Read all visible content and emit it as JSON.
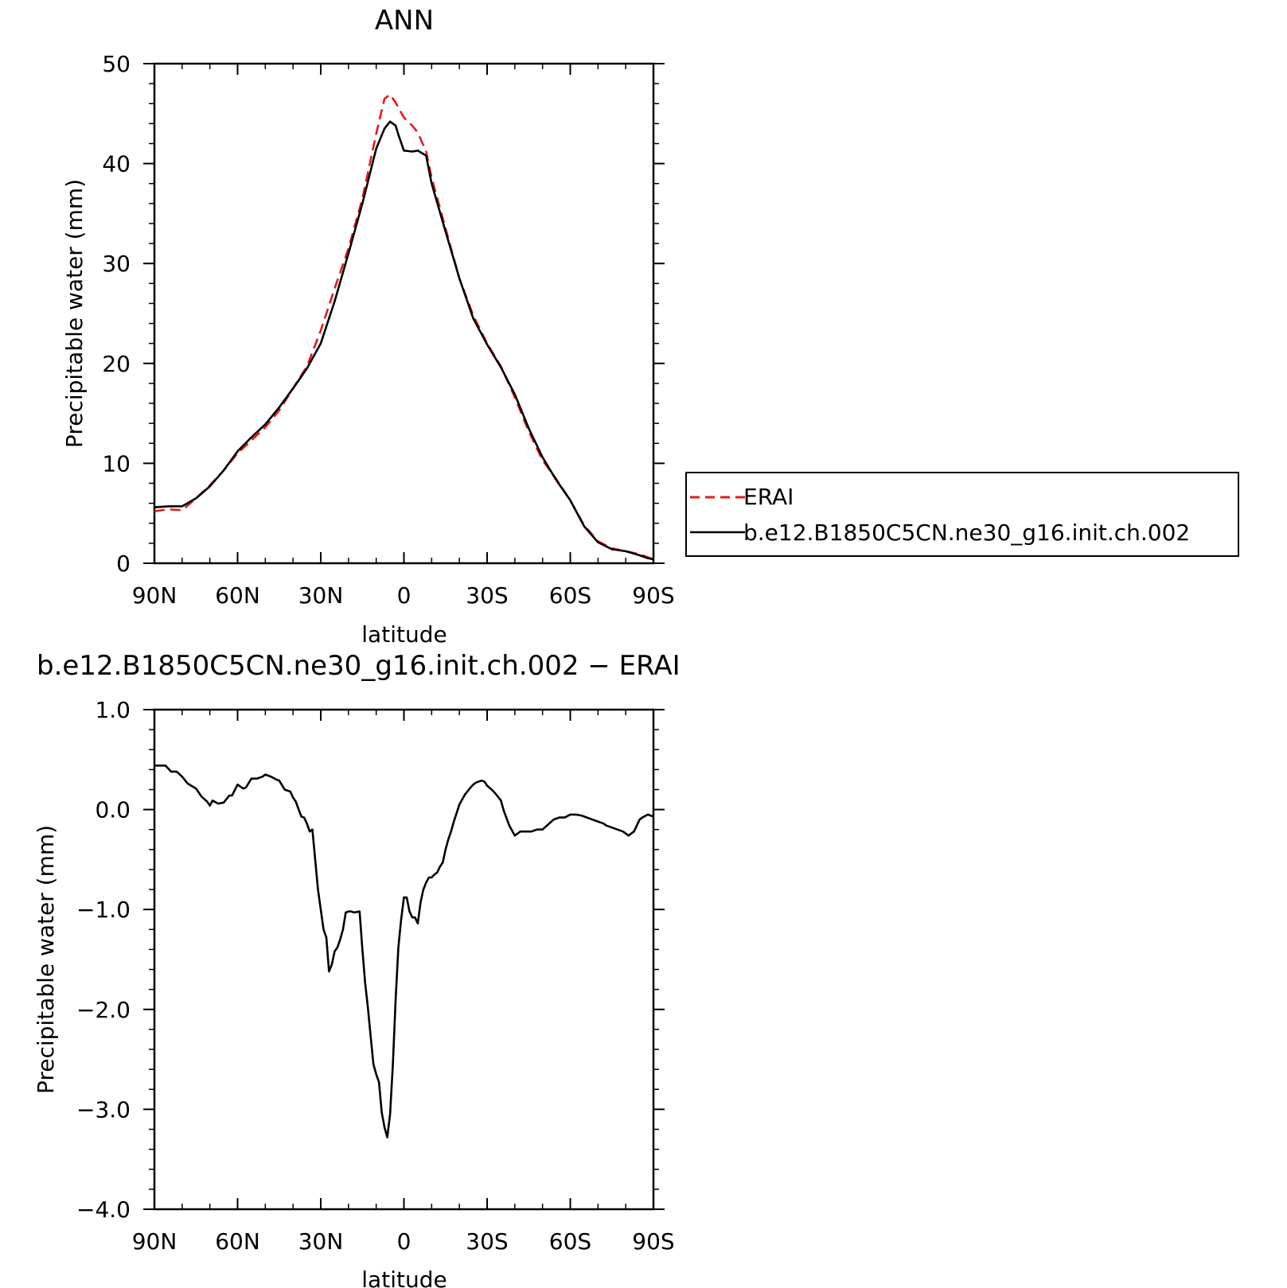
{
  "chart_data": [
    {
      "type": "line",
      "title": "ANN",
      "xlabel": "latitude",
      "ylabel": "Precipitable water (mm)",
      "xlim": [
        90,
        -90
      ],
      "ylim": [
        0,
        50
      ],
      "xticks": [
        90,
        60,
        30,
        0,
        -30,
        -60,
        -90
      ],
      "xticklabels": [
        "90N",
        "60N",
        "30N",
        "0",
        "30S",
        "60S",
        "90S"
      ],
      "yticks": [
        0,
        10,
        20,
        30,
        40,
        50
      ],
      "yticklabels": [
        "0",
        "10",
        "20",
        "30",
        "40",
        "50"
      ],
      "grid": false,
      "legend": "right",
      "series": [
        {
          "name": "ERAI",
          "color": "#e41a1c",
          "dash": "dashed",
          "x": [
            90,
            85,
            80,
            75,
            70,
            65,
            60,
            55,
            50,
            45,
            40,
            35,
            30,
            25,
            20,
            15,
            10,
            7,
            5,
            3,
            0,
            -3,
            -5,
            -8,
            -10,
            -15,
            -20,
            -25,
            -30,
            -35,
            -40,
            -45,
            -50,
            -55,
            -60,
            -65,
            -70,
            -75,
            -80,
            -85,
            -88,
            -90
          ],
          "y": [
            5.2,
            5.4,
            5.3,
            6.5,
            7.8,
            9.3,
            11.0,
            12.3,
            13.6,
            15.3,
            17.5,
            19.7,
            23.3,
            27.5,
            31.5,
            36.5,
            43.0,
            46.5,
            46.9,
            46.1,
            44.6,
            43.8,
            43.1,
            41.2,
            38.6,
            33.5,
            28.5,
            24.8,
            22.0,
            19.7,
            16.6,
            13.2,
            10.3,
            8.4,
            6.3,
            3.8,
            2.2,
            1.5,
            1.2,
            0.9,
            0.6,
            0.4
          ]
        },
        {
          "name": "b.e12.B1850C5CN.ne30_g16.init.ch.002",
          "color": "#000000",
          "dash": "solid",
          "x": [
            90,
            85,
            80,
            75,
            70,
            65,
            60,
            55,
            50,
            45,
            40,
            35,
            30,
            25,
            20,
            15,
            10,
            7,
            5,
            3,
            2,
            0,
            -3,
            -5,
            -8,
            -10,
            -15,
            -20,
            -25,
            -30,
            -35,
            -40,
            -45,
            -50,
            -55,
            -60,
            -65,
            -70,
            -75,
            -80,
            -85,
            -88,
            -90
          ],
          "y": [
            5.6,
            5.7,
            5.7,
            6.5,
            7.7,
            9.3,
            11.2,
            12.6,
            13.9,
            15.6,
            17.5,
            19.5,
            22.0,
            26.2,
            31.0,
            36.0,
            41.5,
            43.5,
            44.2,
            43.8,
            42.9,
            41.3,
            41.2,
            41.3,
            40.8,
            38.0,
            33.2,
            28.5,
            24.5,
            21.9,
            19.6,
            16.9,
            13.5,
            10.6,
            8.3,
            6.3,
            3.7,
            2.1,
            1.4,
            1.2,
            0.8,
            0.5,
            0.4
          ]
        }
      ]
    },
    {
      "type": "line",
      "title": "b.e12.B1850C5CN.ne30_g16.init.ch.002 − ERAI",
      "xlabel": "latitude",
      "ylabel": "Precipitable water (mm)",
      "xlim": [
        90,
        -90
      ],
      "ylim": [
        -4.0,
        1.0
      ],
      "xticks": [
        90,
        60,
        30,
        0,
        -30,
        -60,
        -90
      ],
      "xticklabels": [
        "90N",
        "60N",
        "30N",
        "0",
        "30S",
        "60S",
        "90S"
      ],
      "yticks": [
        1.0,
        0.0,
        -1.0,
        -2.0,
        -3.0,
        -4.0
      ],
      "yticklabels": [
        "1.0",
        "0.0",
        "−1.0",
        "−2.0",
        "−3.0",
        "−4.0"
      ],
      "grid": false,
      "series": [
        {
          "color": "#000000",
          "dash": "solid",
          "x": [
            90,
            86,
            84,
            82,
            80,
            78,
            75,
            73,
            71,
            70,
            69,
            67,
            65,
            63,
            62,
            60,
            58,
            57,
            55,
            53,
            51,
            50,
            48,
            46,
            45,
            43,
            41,
            40,
            39,
            37,
            36,
            35,
            34,
            33,
            31,
            29,
            28,
            27,
            26,
            25,
            24,
            23,
            22,
            21,
            20,
            19,
            18,
            16,
            15,
            14,
            13,
            12,
            11,
            10,
            9,
            8,
            7,
            6,
            5,
            4,
            3,
            2,
            1,
            0,
            -1,
            -2,
            -3,
            -4,
            -5,
            -6,
            -7,
            -8,
            -9,
            -10,
            -11,
            -12,
            -13,
            -14,
            -15,
            -16,
            -17,
            -18,
            -20,
            -22,
            -24,
            -25,
            -26,
            -28,
            -29,
            -30,
            -32,
            -33,
            -35,
            -36,
            -38,
            -40,
            -42,
            -44,
            -46,
            -48,
            -50,
            -52,
            -54,
            -56,
            -58,
            -60,
            -62,
            -64,
            -65,
            -66,
            -68,
            -70,
            -72,
            -73,
            -75,
            -77,
            -79,
            -80,
            -81,
            -83,
            -85,
            -86,
            -88,
            -90
          ],
          "y": [
            0.44,
            0.44,
            0.38,
            0.38,
            0.33,
            0.26,
            0.21,
            0.13,
            0.08,
            0.04,
            0.09,
            0.06,
            0.07,
            0.14,
            0.14,
            0.25,
            0.21,
            0.22,
            0.31,
            0.31,
            0.33,
            0.35,
            0.33,
            0.3,
            0.29,
            0.2,
            0.18,
            0.12,
            0.08,
            -0.07,
            -0.08,
            -0.14,
            -0.22,
            -0.2,
            -0.8,
            -1.2,
            -1.28,
            -1.62,
            -1.55,
            -1.42,
            -1.38,
            -1.3,
            -1.2,
            -1.03,
            -1.02,
            -1.02,
            -1.03,
            -1.02,
            -1.4,
            -1.73,
            -1.98,
            -2.27,
            -2.55,
            -2.65,
            -2.73,
            -3.03,
            -3.18,
            -3.28,
            -3.05,
            -2.55,
            -1.9,
            -1.38,
            -1.1,
            -0.88,
            -0.88,
            -1.02,
            -1.08,
            -1.08,
            -1.14,
            -0.93,
            -0.8,
            -0.73,
            -0.68,
            -0.68,
            -0.65,
            -0.63,
            -0.57,
            -0.53,
            -0.4,
            -0.3,
            -0.22,
            -0.12,
            0.05,
            0.15,
            0.22,
            0.25,
            0.27,
            0.29,
            0.28,
            0.24,
            0.19,
            0.16,
            0.09,
            -0.01,
            -0.16,
            -0.26,
            -0.22,
            -0.22,
            -0.22,
            -0.2,
            -0.2,
            -0.15,
            -0.1,
            -0.08,
            -0.08,
            -0.05,
            -0.05,
            -0.06,
            -0.07,
            -0.08,
            -0.1,
            -0.12,
            -0.14,
            -0.16,
            -0.18,
            -0.2,
            -0.22,
            -0.24,
            -0.26,
            -0.22,
            -0.1,
            -0.08,
            -0.05,
            -0.07
          ],
          "x_resampled_note": ""
        }
      ]
    }
  ]
}
